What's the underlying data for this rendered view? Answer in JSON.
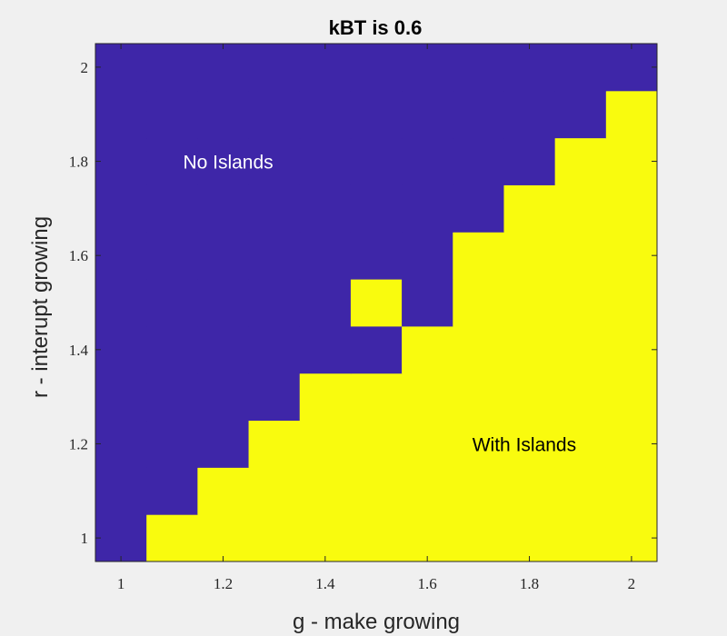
{
  "chart_data": {
    "type": "heatmap",
    "title": "kBT is 0.6",
    "xlabel": "g - make growing",
    "ylabel": "r - interupt growing",
    "x": [
      1.0,
      1.1,
      1.2,
      1.3,
      1.4,
      1.5,
      1.6,
      1.7,
      1.8,
      1.9,
      2.0
    ],
    "y": [
      1.0,
      1.1,
      1.2,
      1.3,
      1.4,
      1.5,
      1.6,
      1.7,
      1.8,
      1.9,
      2.0
    ],
    "xlim": [
      0.95,
      2.05
    ],
    "ylim": [
      0.95,
      2.05
    ],
    "xticks": [
      1,
      1.2,
      1.4,
      1.6,
      1.8,
      2
    ],
    "xtick_labels": [
      "1",
      "1.2",
      "1.4",
      "1.6",
      "1.8",
      "2"
    ],
    "yticks": [
      1,
      1.2,
      1.4,
      1.6,
      1.8,
      2
    ],
    "ytick_labels": [
      "1",
      "1.2",
      "1.4",
      "1.6",
      "1.8",
      "2"
    ],
    "values": [
      [
        0,
        1,
        1,
        1,
        1,
        1,
        1,
        1,
        1,
        1,
        1
      ],
      [
        0,
        0,
        1,
        1,
        1,
        1,
        1,
        1,
        1,
        1,
        1
      ],
      [
        0,
        0,
        0,
        1,
        1,
        1,
        1,
        1,
        1,
        1,
        1
      ],
      [
        0,
        0,
        0,
        0,
        1,
        1,
        1,
        1,
        1,
        1,
        1
      ],
      [
        0,
        0,
        0,
        0,
        0,
        0,
        1,
        1,
        1,
        1,
        1
      ],
      [
        0,
        0,
        0,
        0,
        0,
        1,
        0,
        1,
        1,
        1,
        1
      ],
      [
        0,
        0,
        0,
        0,
        0,
        0,
        0,
        1,
        1,
        1,
        1
      ],
      [
        0,
        0,
        0,
        0,
        0,
        0,
        0,
        0,
        1,
        1,
        1
      ],
      [
        0,
        0,
        0,
        0,
        0,
        0,
        0,
        0,
        0,
        1,
        1
      ],
      [
        0,
        0,
        0,
        0,
        0,
        0,
        0,
        0,
        0,
        0,
        1
      ],
      [
        0,
        0,
        0,
        0,
        0,
        0,
        0,
        0,
        0,
        0,
        0
      ]
    ],
    "value_legend": {
      "0": "No Islands",
      "1": "With Islands"
    },
    "colors": {
      "0": "#3e26a8",
      "1": "#f9fb0e"
    },
    "annotations": [
      {
        "text": "No Islands",
        "x": 1.21,
        "y": 1.8,
        "color": "#ffffff"
      },
      {
        "text": "With Islands",
        "x": 1.79,
        "y": 1.2,
        "color": "#000000"
      }
    ],
    "grid": false
  }
}
